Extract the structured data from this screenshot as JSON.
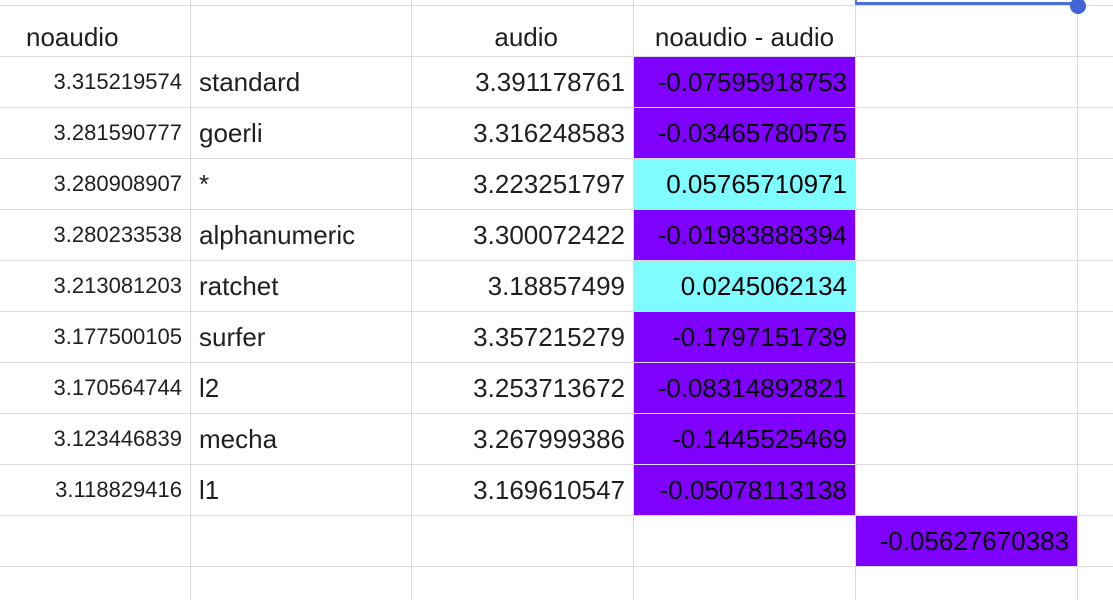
{
  "colors": {
    "negative_fill": "#8000ff",
    "positive_fill": "#7ffcff",
    "selection": "#3e64d6",
    "grid": "#dadada"
  },
  "headers": {
    "col_a": "noaudio",
    "col_b": "",
    "col_c": "audio",
    "col_d": "noaudio - audio"
  },
  "rows": [
    {
      "noaudio": "3.315219574",
      "name": "standard",
      "audio": "3.391178761",
      "diff": "-0.07595918753",
      "sign": "negative"
    },
    {
      "noaudio": "3.281590777",
      "name": "goerli",
      "audio": "3.316248583",
      "diff": "-0.03465780575",
      "sign": "negative"
    },
    {
      "noaudio": "3.280908907",
      "name": "*",
      "audio": "3.223251797",
      "diff": "0.05765710971",
      "sign": "positive"
    },
    {
      "noaudio": "3.280233538",
      "name": "alphanumeric",
      "audio": "3.300072422",
      "diff": "-0.01983888394",
      "sign": "negative"
    },
    {
      "noaudio": "3.213081203",
      "name": "ratchet",
      "audio": "3.18857499",
      "diff": "0.0245062134",
      "sign": "positive"
    },
    {
      "noaudio": "3.177500105",
      "name": "surfer",
      "audio": "3.357215279",
      "diff": "-0.1797151739",
      "sign": "negative"
    },
    {
      "noaudio": "3.170564744",
      "name": "l2",
      "audio": "3.253713672",
      "diff": "-0.08314892821",
      "sign": "negative"
    },
    {
      "noaudio": "3.123446839",
      "name": "mecha",
      "audio": "3.267999386",
      "diff": "-0.1445525469",
      "sign": "negative"
    },
    {
      "noaudio": "3.118829416",
      "name": "l1",
      "audio": "3.169610547",
      "diff": "-0.05078113138",
      "sign": "negative"
    }
  ],
  "summary": {
    "value": "-0.05627670383",
    "sign": "negative"
  }
}
